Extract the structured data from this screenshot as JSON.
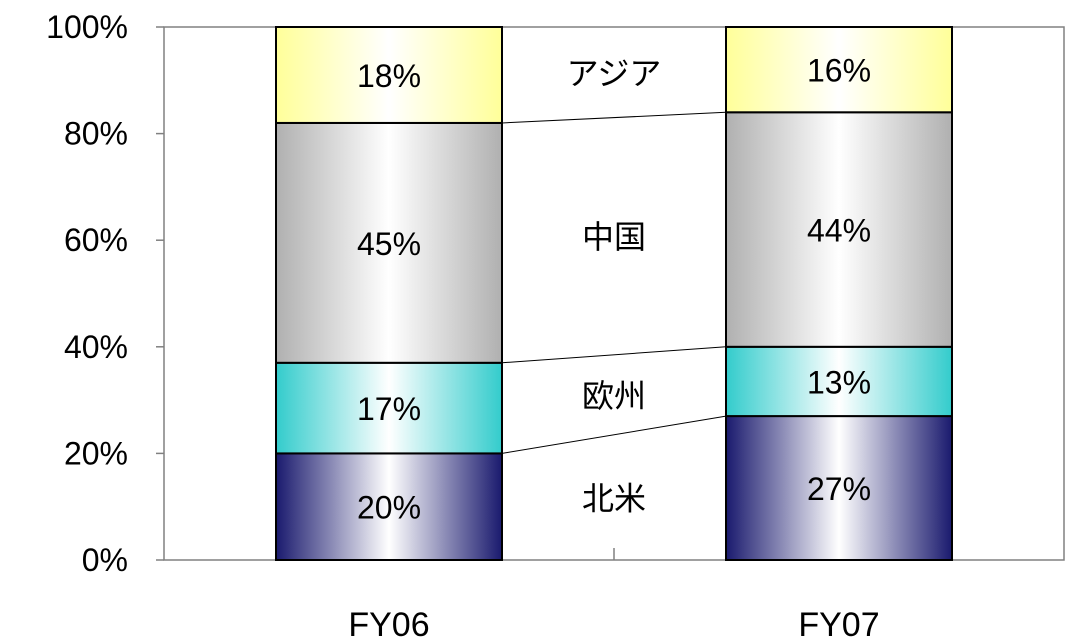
{
  "chart_data": {
    "type": "bar",
    "stacked": true,
    "percent_stacked": true,
    "categories": [
      "FY06",
      "FY07"
    ],
    "series": [
      {
        "name": "北米",
        "values": [
          20,
          27
        ],
        "color": "#1a1a6e"
      },
      {
        "name": "欧州",
        "values": [
          17,
          13
        ],
        "color": "#33cccc"
      },
      {
        "name": "中国",
        "values": [
          45,
          44
        ],
        "color": "#b0b0b0"
      },
      {
        "name": "アジア",
        "values": [
          18,
          16
        ],
        "color": "#ffff99"
      }
    ],
    "data_labels": [
      [
        "20%",
        "27%"
      ],
      [
        "17%",
        "13%"
      ],
      [
        "45%",
        "44%"
      ],
      [
        "18%",
        "16%"
      ]
    ],
    "y_ticks": [
      "0%",
      "20%",
      "40%",
      "60%",
      "80%",
      "100%"
    ],
    "ylim": [
      0,
      100
    ],
    "grid": false,
    "legend": "series labels placed between bars",
    "series_connector_lines": true
  }
}
